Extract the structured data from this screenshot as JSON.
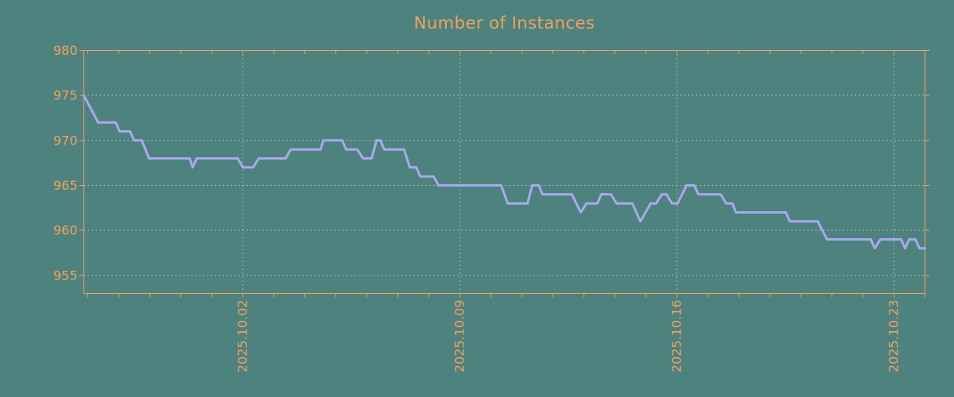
{
  "title": "Number of Instances",
  "colors": {
    "background": "#4e827e",
    "axis": "#f2a25c",
    "line": "#a9a9ec",
    "grid": "#c2cac6"
  },
  "chart_data": {
    "type": "line",
    "title": "Number of Instances",
    "x_unit": "days",
    "xlim": [
      0,
      27.13
    ],
    "ylim": [
      953,
      980
    ],
    "grid_style": "dotted",
    "legend": "none",
    "x_tick_labels": [
      {
        "t": 5.13,
        "label": "2025.10.02"
      },
      {
        "t": 12.13,
        "label": "2025.10.09"
      },
      {
        "t": 19.13,
        "label": "2025.10.16"
      },
      {
        "t": 26.13,
        "label": "2025.10.23"
      }
    ],
    "x_minor_ticks": {
      "start": 0.13,
      "interval": 1,
      "count": 28
    },
    "y_tick_values": [
      980,
      975,
      970,
      965,
      960,
      955
    ],
    "y_tick_labels": [
      "980",
      "975",
      "970",
      "965",
      "960",
      "955"
    ],
    "y_gridline_values": [
      975,
      970,
      965,
      960,
      955
    ],
    "series": [
      {
        "points": [
          [
            0,
            975
          ],
          [
            0.46,
            972
          ],
          [
            1.03,
            972
          ],
          [
            1.15,
            971
          ],
          [
            1.49,
            971
          ],
          [
            1.62,
            970
          ],
          [
            1.87,
            970
          ],
          [
            2.1,
            968
          ],
          [
            3.41,
            968
          ],
          [
            3.51,
            967
          ],
          [
            3.64,
            968
          ],
          [
            4.96,
            968
          ],
          [
            5.13,
            967
          ],
          [
            5.46,
            967
          ],
          [
            5.64,
            968
          ],
          [
            6.51,
            968
          ],
          [
            6.67,
            969
          ],
          [
            7.64,
            969
          ],
          [
            7.72,
            970
          ],
          [
            8.33,
            970
          ],
          [
            8.46,
            969
          ],
          [
            8.82,
            969
          ],
          [
            9,
            968
          ],
          [
            9.28,
            968
          ],
          [
            9.44,
            970
          ],
          [
            9.56,
            970
          ],
          [
            9.69,
            969
          ],
          [
            10.33,
            969
          ],
          [
            10.51,
            967
          ],
          [
            10.72,
            967
          ],
          [
            10.85,
            966
          ],
          [
            11.28,
            966
          ],
          [
            11.44,
            965
          ],
          [
            13.46,
            965
          ],
          [
            13.67,
            963
          ],
          [
            14.31,
            963
          ],
          [
            14.46,
            965
          ],
          [
            14.67,
            965
          ],
          [
            14.79,
            964
          ],
          [
            15.74,
            964
          ],
          [
            16.03,
            962
          ],
          [
            16.21,
            963
          ],
          [
            16.56,
            963
          ],
          [
            16.69,
            964
          ],
          [
            17,
            964
          ],
          [
            17.18,
            963
          ],
          [
            17.69,
            963
          ],
          [
            17.95,
            961
          ],
          [
            18.28,
            963
          ],
          [
            18.46,
            963
          ],
          [
            18.64,
            964
          ],
          [
            18.79,
            964
          ],
          [
            18.97,
            963
          ],
          [
            19.15,
            963
          ],
          [
            19.44,
            965
          ],
          [
            19.69,
            965
          ],
          [
            19.82,
            964
          ],
          [
            20.54,
            964
          ],
          [
            20.72,
            963
          ],
          [
            20.92,
            963
          ],
          [
            21.03,
            962
          ],
          [
            22.64,
            962
          ],
          [
            22.77,
            961
          ],
          [
            23.67,
            961
          ],
          [
            23.97,
            959
          ],
          [
            25.38,
            959
          ],
          [
            25.51,
            958
          ],
          [
            25.69,
            959
          ],
          [
            26.36,
            959
          ],
          [
            26.49,
            958
          ],
          [
            26.62,
            959
          ],
          [
            26.82,
            959
          ],
          [
            26.95,
            958
          ],
          [
            27.13,
            958
          ]
        ]
      }
    ]
  }
}
